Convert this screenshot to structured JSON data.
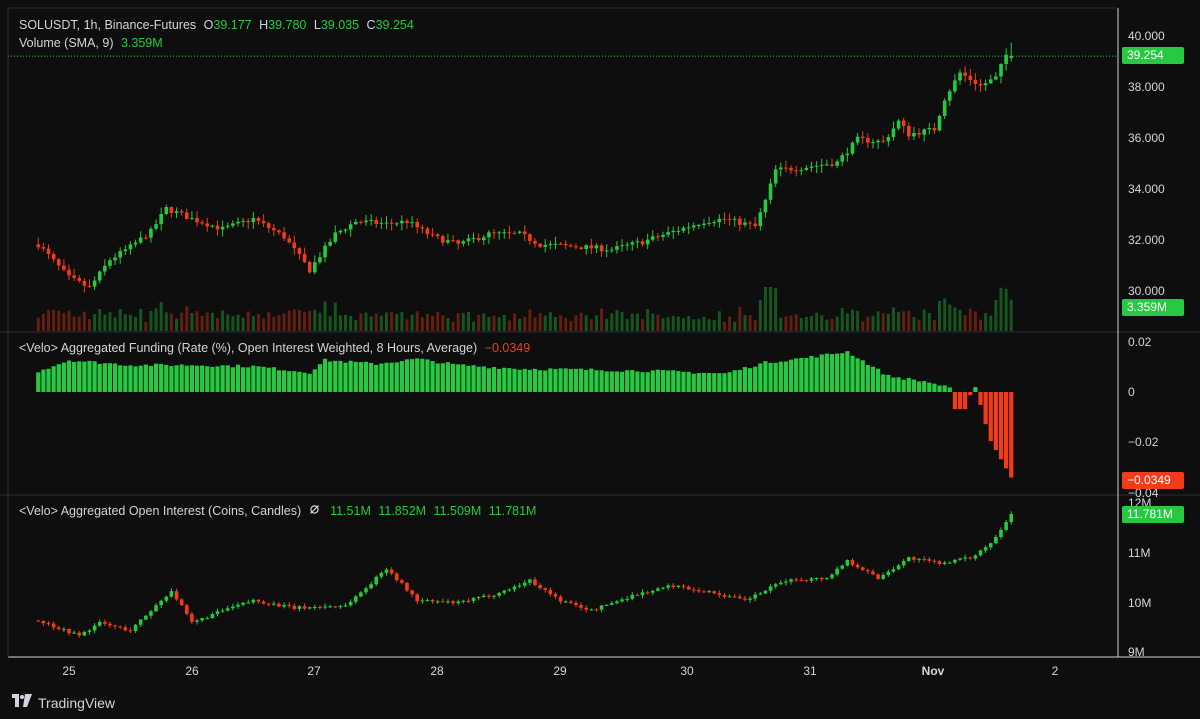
{
  "header": {
    "symbol": "SOLUSDT, 1h, Binance-Futures",
    "o_label": "O",
    "o_value": "39.177",
    "h_label": "H",
    "h_value": "39.780",
    "l_label": "L",
    "l_value": "39.035",
    "c_label": "C",
    "c_value": "39.254"
  },
  "volume_legend": {
    "label": "Volume (SMA, 9)",
    "value": "3.359M"
  },
  "funding_legend": {
    "label": "<Velo> Aggregated Funding (Rate (%), Open Interest Weighted, 8 Hours, Average)",
    "value": "−0.0349"
  },
  "oi_legend": {
    "label": "<Velo> Aggregated Open Interest (Coins, Candles)",
    "icon": "eye-slash-icon",
    "v1": "11.51M",
    "v2": "11.852M",
    "v3": "11.509M",
    "v4": "11.781M"
  },
  "badges": {
    "price": "39.254",
    "volume": "3.359M",
    "funding": "−0.0349",
    "oi": "11.781M"
  },
  "axes": {
    "price_ticks": [
      "40.000",
      "38.000",
      "36.000",
      "34.000",
      "32.000",
      "30.000"
    ],
    "funding_ticks": [
      "0.02",
      "0",
      "−0.02",
      "−0.04"
    ],
    "oi_ticks": [
      "12M",
      "11M",
      "10M",
      "9M"
    ],
    "time_ticks": [
      "25",
      "26",
      "27",
      "28",
      "29",
      "30",
      "31",
      "Nov",
      "2"
    ]
  },
  "colors": {
    "up": "#26c941",
    "down": "#f23b1a",
    "background": "#0e0e0e",
    "text": "#d1d4dc"
  },
  "branding": {
    "name": "TradingView",
    "logo_icon": "tradingview-logo-icon"
  },
  "chart_data": [
    {
      "type": "candlestick",
      "title": "SOLUSDT, 1h, Binance-Futures",
      "x_range": [
        "Oct 24 18:00",
        "Nov 1 12:00"
      ],
      "ylim": [
        29.0,
        40.5
      ],
      "key_points": [
        {
          "t": "Oct 24 18:00",
          "close": 31.9
        },
        {
          "t": "Oct 25 00:00",
          "close": 30.6
        },
        {
          "t": "Oct 25 04:00",
          "close": 30.2
        },
        {
          "t": "Oct 25 08:00",
          "close": 31.3
        },
        {
          "t": "Oct 25 12:00",
          "close": 31.8
        },
        {
          "t": "Oct 25 16:00",
          "close": 32.4
        },
        {
          "t": "Oct 25 19:00",
          "close": 33.3
        },
        {
          "t": "Oct 26 00:00",
          "close": 32.9
        },
        {
          "t": "Oct 26 06:00",
          "close": 32.5
        },
        {
          "t": "Oct 26 12:00",
          "close": 32.9
        },
        {
          "t": "Oct 26 18:00",
          "close": 32.2
        },
        {
          "t": "Oct 26 23:00",
          "close": 30.9
        },
        {
          "t": "Oct 27 04:00",
          "close": 32.3
        },
        {
          "t": "Oct 27 08:00",
          "close": 32.8
        },
        {
          "t": "Oct 27 14:00",
          "close": 32.7
        },
        {
          "t": "Oct 27 18:00",
          "close": 32.8
        },
        {
          "t": "Oct 27 23:00",
          "close": 32.2
        },
        {
          "t": "Oct 28 04:00",
          "close": 31.9
        },
        {
          "t": "Oct 28 10:00",
          "close": 32.3
        },
        {
          "t": "Oct 28 16:00",
          "close": 32.3
        },
        {
          "t": "Oct 28 20:00",
          "close": 31.9
        },
        {
          "t": "Oct 29 04:00",
          "close": 31.8
        },
        {
          "t": "Oct 29 10:00",
          "close": 31.7
        },
        {
          "t": "Oct 29 16:00",
          "close": 32.0
        },
        {
          "t": "Oct 29 22:00",
          "close": 32.4
        },
        {
          "t": "Oct 30 04:00",
          "close": 32.8
        },
        {
          "t": "Oct 30 08:00",
          "close": 32.9
        },
        {
          "t": "Oct 30 14:00",
          "close": 32.6
        },
        {
          "t": "Oct 30 16:00",
          "close": 33.6
        },
        {
          "t": "Oct 30 18:00",
          "close": 34.8
        },
        {
          "t": "Oct 30 23:00",
          "close": 34.9
        },
        {
          "t": "Oct 31 06:00",
          "close": 35.1
        },
        {
          "t": "Oct 31 10:00",
          "close": 36.0
        },
        {
          "t": "Oct 31 15:00",
          "close": 35.9
        },
        {
          "t": "Oct 31 18:00",
          "close": 36.7
        },
        {
          "t": "Oct 31 20:00",
          "close": 36.2
        },
        {
          "t": "Nov 01 01:00",
          "close": 36.4
        },
        {
          "t": "Nov 01 03:00",
          "close": 37.6
        },
        {
          "t": "Nov 01 06:00",
          "close": 38.6
        },
        {
          "t": "Nov 01 10:00",
          "close": 38.1
        },
        {
          "t": "Nov 01 13:00",
          "close": 38.4
        },
        {
          "t": "Nov 01 15:00",
          "close": 39.3
        },
        {
          "t": "Nov 01 16:00",
          "close": 39.254
        }
      ],
      "last": {
        "open": 39.177,
        "high": 39.78,
        "low": 39.035,
        "close": 39.254
      }
    },
    {
      "type": "bar",
      "title": "Volume (SMA, 9)",
      "last_value": "3.359M"
    },
    {
      "type": "histogram",
      "title": "<Velo> Aggregated Funding (Rate (%), Open Interest Weighted, 8 Hours, Average)",
      "ylim": [
        -0.04,
        0.025
      ],
      "key_points": [
        {
          "t": "Oct 24 18:00",
          "value": 0.0085
        },
        {
          "t": "Oct 25 00:00",
          "value": 0.013
        },
        {
          "t": "Oct 25 06:00",
          "value": 0.012
        },
        {
          "t": "Oct 25 12:00",
          "value": 0.011
        },
        {
          "t": "Oct 26 00:00",
          "value": 0.011
        },
        {
          "t": "Oct 26 12:00",
          "value": 0.0105
        },
        {
          "t": "Oct 26 23:00",
          "value": 0.008
        },
        {
          "t": "Oct 27 02:00",
          "value": 0.013
        },
        {
          "t": "Oct 27 12:00",
          "value": 0.0115
        },
        {
          "t": "Oct 27 20:00",
          "value": 0.0135
        },
        {
          "t": "Oct 28 04:00",
          "value": 0.011
        },
        {
          "t": "Oct 28 16:00",
          "value": 0.0095
        },
        {
          "t": "Oct 29 08:00",
          "value": 0.009
        },
        {
          "t": "Oct 29 20:00",
          "value": 0.0085
        },
        {
          "t": "Oct 30 08:00",
          "value": 0.0075
        },
        {
          "t": "Oct 30 16:00",
          "value": 0.012
        },
        {
          "t": "Oct 31 00:00",
          "value": 0.014
        },
        {
          "t": "Oct 31 08:00",
          "value": 0.0165
        },
        {
          "t": "Oct 31 16:00",
          "value": 0.0065
        },
        {
          "t": "Nov 01 00:00",
          "value": 0.004
        },
        {
          "t": "Nov 01 04:00",
          "value": 0.0015
        },
        {
          "t": "Nov 01 06:00",
          "value": -0.007
        },
        {
          "t": "Nov 01 09:00",
          "value": 0.002
        },
        {
          "t": "Nov 01 12:00",
          "value": -0.02
        },
        {
          "t": "Nov 01 16:00",
          "value": -0.0349
        }
      ]
    },
    {
      "type": "candlestick",
      "title": "<Velo> Aggregated Open Interest (Coins, Candles)",
      "ylim": [
        8.9,
        12.2
      ],
      "unit": "M",
      "key_points": [
        {
          "t": "Oct 24 18:00",
          "close": 9.65
        },
        {
          "t": "Oct 25 02:00",
          "close": 9.35
        },
        {
          "t": "Oct 25 06:00",
          "close": 9.6
        },
        {
          "t": "Oct 25 12:00",
          "close": 9.45
        },
        {
          "t": "Oct 25 20:00",
          "close": 10.25
        },
        {
          "t": "Oct 26 00:00",
          "close": 9.6
        },
        {
          "t": "Oct 26 06:00",
          "close": 9.85
        },
        {
          "t": "Oct 26 12:00",
          "close": 10.05
        },
        {
          "t": "Oct 26 20:00",
          "close": 9.9
        },
        {
          "t": "Oct 27 06:00",
          "close": 9.95
        },
        {
          "t": "Oct 27 10:00",
          "close": 10.3
        },
        {
          "t": "Oct 27 14:00",
          "close": 10.7
        },
        {
          "t": "Oct 27 20:00",
          "close": 10.05
        },
        {
          "t": "Oct 28 04:00",
          "close": 10.0
        },
        {
          "t": "Oct 28 12:00",
          "close": 10.2
        },
        {
          "t": "Oct 28 18:00",
          "close": 10.45
        },
        {
          "t": "Oct 29 00:00",
          "close": 10.05
        },
        {
          "t": "Oct 29 06:00",
          "close": 9.85
        },
        {
          "t": "Oct 29 14:00",
          "close": 10.15
        },
        {
          "t": "Oct 29 22:00",
          "close": 10.35
        },
        {
          "t": "Oct 30 06:00",
          "close": 10.2
        },
        {
          "t": "Oct 30 12:00",
          "close": 10.05
        },
        {
          "t": "Oct 30 20:00",
          "close": 10.45
        },
        {
          "t": "Oct 31 04:00",
          "close": 10.5
        },
        {
          "t": "Oct 31 08:00",
          "close": 10.85
        },
        {
          "t": "Oct 31 14:00",
          "close": 10.5
        },
        {
          "t": "Oct 31 20:00",
          "close": 10.9
        },
        {
          "t": "Nov 01 02:00",
          "close": 10.8
        },
        {
          "t": "Nov 01 08:00",
          "close": 10.9
        },
        {
          "t": "Nov 01 12:00",
          "close": 11.2
        },
        {
          "t": "Nov 01 16:00",
          "close": 11.781
        }
      ]
    }
  ]
}
